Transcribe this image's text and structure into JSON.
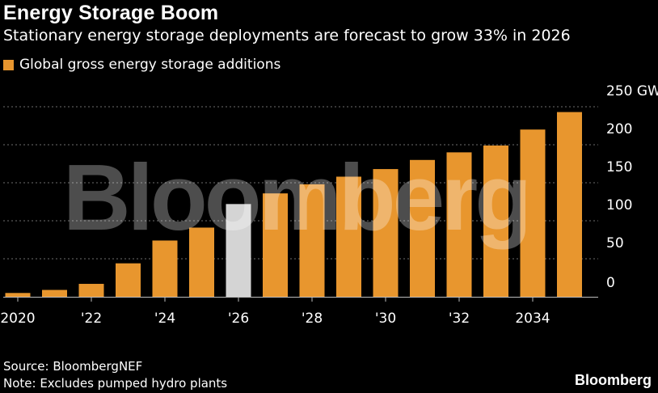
{
  "title": "Energy Storage Boom",
  "subtitle": "Stationary energy storage deployments are forecast to grow 33% in 2026",
  "source": "Source: BloombergNEF",
  "note": "Note: Excludes pumped hydro plants",
  "brand": "Bloomberg",
  "watermark": "Bloomberg",
  "colors": {
    "bar": "#e8962e",
    "highlight": "#d4d4d4",
    "grid": "#6e6e6e",
    "background": "#000000"
  },
  "chart_data": {
    "type": "bar",
    "title": "Energy Storage Boom",
    "legend": [
      "Global gross energy storage additions"
    ],
    "legend_position": "top-left",
    "xlabel": "",
    "ylabel": "GW",
    "ylim": [
      0,
      250
    ],
    "y_ticks": [
      "0",
      "50",
      "100",
      "150",
      "200",
      "250 GW"
    ],
    "y_tick_values": [
      0,
      50,
      100,
      150,
      200,
      250
    ],
    "x_ticks": [
      {
        "label": "2020",
        "index": 0
      },
      {
        "label": "'22",
        "index": 2
      },
      {
        "label": "'24",
        "index": 4
      },
      {
        "label": "'26",
        "index": 6
      },
      {
        "label": "'28",
        "index": 8
      },
      {
        "label": "'30",
        "index": 10
      },
      {
        "label": "'32",
        "index": 12
      },
      {
        "label": "2034",
        "index": 14
      }
    ],
    "categories": [
      "2020",
      "2021",
      "2022",
      "2023",
      "2024",
      "2025",
      "2026",
      "2027",
      "2028",
      "2029",
      "2030",
      "2031",
      "2032",
      "2033",
      "2034",
      "2035"
    ],
    "series": [
      {
        "name": "Global gross energy storage additions",
        "values": [
          5,
          9,
          17,
          44,
          74,
          91,
          122,
          136,
          148,
          158,
          168,
          180,
          190,
          199,
          220,
          243
        ],
        "highlight_index": 6
      }
    ],
    "grid": true
  }
}
